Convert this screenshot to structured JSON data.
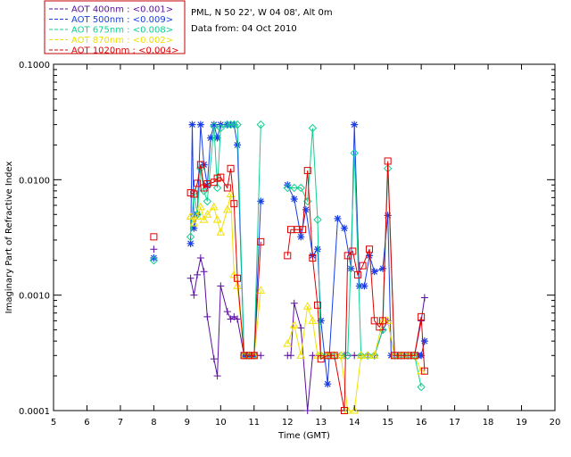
{
  "info": {
    "location": "PML, N 50 22', W 04 08', Alt 0m",
    "date_line": "Data from: 04 Oct 2010"
  },
  "colors": {
    "frame": "#000000",
    "legend_border": "#c00000"
  },
  "chart_data": {
    "type": "line",
    "xlabel": "Time (GMT)",
    "ylabel": "Imaginary Part of Refractive Index",
    "xlim": [
      5,
      20
    ],
    "ylim": [
      0.0001,
      0.1
    ],
    "yscale": "log",
    "grid": false,
    "legend": "top-left, outside plot",
    "x_ticks": [
      "5",
      "6",
      "7",
      "8",
      "9",
      "10",
      "11",
      "12",
      "13",
      "14",
      "15",
      "16",
      "17",
      "18",
      "19",
      "20"
    ],
    "y_ticks": [
      {
        "value": 0.0001,
        "label": "0.0001"
      },
      {
        "value": 0.001,
        "label": "0.0010"
      },
      {
        "value": 0.01,
        "label": "0.0100"
      },
      {
        "value": 0.1,
        "label": "0.1000"
      }
    ],
    "series": [
      {
        "name": "AOT 400nm : <0.001>",
        "color": "#5a0fa0",
        "marker": "plus",
        "x": [
          8.0,
          9.1,
          9.2,
          9.3,
          9.4,
          9.5,
          9.6,
          9.8,
          9.9,
          10.0,
          10.2,
          10.3,
          10.4,
          10.5,
          10.7,
          10.85,
          11.0,
          11.2,
          12.0,
          12.1,
          12.2,
          12.4,
          12.6,
          12.75,
          13.0,
          13.2,
          13.4,
          13.7,
          14.0,
          14.2,
          14.4,
          14.6,
          14.85,
          15.0,
          15.2,
          15.4,
          15.6,
          15.8,
          16.0,
          16.1
        ],
        "y": [
          0.0025,
          0.0014,
          0.001,
          0.0015,
          0.0021,
          0.0016,
          0.00065,
          0.00028,
          0.0002,
          0.0012,
          0.00072,
          0.00062,
          0.00065,
          0.00062,
          0.0003,
          0.0003,
          0.0003,
          0.0003,
          0.0003,
          0.0003,
          0.00085,
          0.00052,
          0.0001,
          0.0003,
          0.0003,
          0.0003,
          0.0003,
          0.0003,
          0.0003,
          0.0003,
          0.0003,
          0.0003,
          0.0005,
          0.0006,
          0.0003,
          0.0003,
          0.0003,
          0.0003,
          0.0006,
          0.00095
        ]
      },
      {
        "name": "AOT 500nm : <0.009>",
        "color": "#1a3ee6",
        "marker": "asterisk",
        "x": [
          8.0,
          9.1,
          9.15,
          9.2,
          9.3,
          9.4,
          9.5,
          9.6,
          9.7,
          9.8,
          9.9,
          10.0,
          10.2,
          10.3,
          10.4,
          10.5,
          10.7,
          10.85,
          11.0,
          11.2,
          12.0,
          12.2,
          12.4,
          12.55,
          12.75,
          12.9,
          13.0,
          13.2,
          13.5,
          13.7,
          13.9,
          14.0,
          14.15,
          14.3,
          14.45,
          14.6,
          14.85,
          15.0,
          15.1,
          15.3,
          15.5,
          15.7,
          15.9,
          16.0,
          16.1
        ],
        "y": [
          0.0021,
          0.0028,
          0.03,
          0.0038,
          0.005,
          0.03,
          0.0135,
          0.0089,
          0.023,
          0.03,
          0.023,
          0.03,
          0.03,
          0.03,
          0.03,
          0.02,
          0.0003,
          0.0003,
          0.0003,
          0.0065,
          0.009,
          0.0068,
          0.0032,
          0.0055,
          0.0022,
          0.0025,
          0.0006,
          0.00017,
          0.0046,
          0.0038,
          0.0017,
          0.03,
          0.0012,
          0.0012,
          0.0022,
          0.0016,
          0.0017,
          0.0049,
          0.0003,
          0.0003,
          0.0003,
          0.0003,
          0.0003,
          0.0003,
          0.0004
        ]
      },
      {
        "name": "AOT 675nm : <0.008>",
        "color": "#10d090",
        "marker": "diamond",
        "x": [
          8.0,
          9.1,
          9.2,
          9.3,
          9.4,
          9.5,
          9.6,
          9.8,
          9.9,
          10.0,
          10.2,
          10.3,
          10.4,
          10.5,
          10.7,
          10.85,
          11.0,
          11.2,
          12.0,
          12.2,
          12.4,
          12.6,
          12.75,
          12.9,
          13.0,
          13.2,
          13.4,
          13.6,
          13.8,
          14.0,
          14.2,
          14.4,
          14.6,
          14.85,
          15.0,
          15.2,
          15.4,
          15.6,
          15.8,
          16.0
        ],
        "y": [
          0.002,
          0.0032,
          0.0078,
          0.005,
          0.0125,
          0.008,
          0.0065,
          0.029,
          0.0085,
          0.028,
          0.03,
          0.03,
          0.03,
          0.03,
          0.0003,
          0.0003,
          0.0003,
          0.03,
          0.0085,
          0.0085,
          0.0085,
          0.0065,
          0.028,
          0.0045,
          0.0003,
          0.0003,
          0.0003,
          0.0003,
          0.0003,
          0.017,
          0.0003,
          0.0003,
          0.0003,
          0.0005,
          0.0125,
          0.0003,
          0.0003,
          0.0003,
          0.0003,
          0.00016
        ]
      },
      {
        "name": "AOT 870nm : <0.002>",
        "color": "#f0e000",
        "marker": "triangle",
        "x": [
          9.1,
          9.2,
          9.3,
          9.4,
          9.5,
          9.6,
          9.8,
          9.9,
          10.0,
          10.2,
          10.3,
          10.4,
          10.5,
          10.7,
          10.85,
          11.0,
          11.2,
          12.0,
          12.2,
          12.4,
          12.6,
          12.75,
          12.9,
          13.0,
          13.2,
          13.4,
          13.6,
          13.8,
          14.0,
          14.2,
          14.4,
          14.6,
          14.85,
          15.0,
          15.2,
          15.4,
          15.6,
          15.8,
          16.0
        ],
        "y": [
          0.0048,
          0.0042,
          0.0048,
          0.0058,
          0.0045,
          0.005,
          0.0058,
          0.0045,
          0.0035,
          0.0055,
          0.0075,
          0.0015,
          0.0012,
          0.0003,
          0.0003,
          0.0003,
          0.0011,
          0.00038,
          0.00055,
          0.0003,
          0.0008,
          0.0006,
          0.0003,
          0.0003,
          0.0003,
          0.0003,
          0.0003,
          0.0001,
          0.0001,
          0.0003,
          0.0003,
          0.0003,
          0.0006,
          0.0006,
          0.0003,
          0.0003,
          0.0003,
          0.0003,
          0.00022
        ]
      },
      {
        "name": "AOT 1020nm : <0.004>",
        "color": "#e00000",
        "marker": "square",
        "x": [
          8.0,
          9.1,
          9.2,
          9.3,
          9.4,
          9.5,
          9.6,
          9.8,
          9.9,
          10.0,
          10.2,
          10.3,
          10.4,
          10.5,
          10.7,
          10.85,
          11.0,
          11.2,
          12.0,
          12.1,
          12.3,
          12.45,
          12.6,
          12.75,
          12.9,
          13.0,
          13.2,
          13.4,
          13.7,
          13.8,
          13.95,
          14.1,
          14.25,
          14.45,
          14.6,
          14.75,
          14.85,
          15.0,
          15.2,
          15.4,
          15.6,
          15.8,
          16.0,
          16.1
        ],
        "y": [
          0.0032,
          0.0077,
          0.0075,
          0.0093,
          0.0135,
          0.0085,
          0.0092,
          0.0095,
          0.0103,
          0.0105,
          0.0085,
          0.0125,
          0.0062,
          0.0014,
          0.0003,
          0.0003,
          0.0003,
          0.0029,
          0.0022,
          0.0037,
          0.0037,
          0.0037,
          0.012,
          0.0021,
          0.00082,
          0.00028,
          0.0003,
          0.0003,
          0.0001,
          0.0022,
          0.0024,
          0.0015,
          0.0018,
          0.0025,
          0.0006,
          0.00053,
          0.0006,
          0.0145,
          0.0003,
          0.0003,
          0.0003,
          0.0003,
          0.00065,
          0.00022
        ]
      }
    ]
  }
}
